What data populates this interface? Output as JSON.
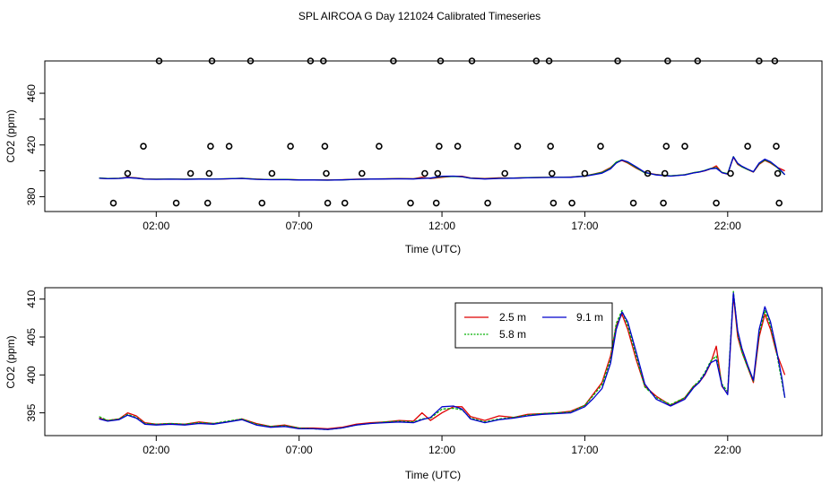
{
  "chart_data": [
    {
      "type": "scatter",
      "title": "SPL AIRCOA G  Day 121024  Calibrated Timeseries",
      "xlabel": "Time (UTC)",
      "ylabel": "CO2 (ppm)",
      "x_units": "hours UTC",
      "xlim": [
        -1.9,
        25.3
      ],
      "ylim": [
        368.5,
        485
      ],
      "x_ticks": [
        2,
        7,
        12,
        17,
        22
      ],
      "x_tick_labels": [
        "02:00",
        "07:00",
        "12:00",
        "17:00",
        "22:00"
      ],
      "y_ticks": [
        380,
        420,
        460
      ],
      "y_tick_labels": [
        "380",
        "420",
        "460"
      ],
      "y_minor_ticks": [
        400,
        440
      ],
      "grid": false,
      "legend": "none",
      "calibration_points": {
        "x": [
          0.5,
          1.0,
          1.55,
          2.1,
          2.7,
          3.2,
          3.8,
          3.85,
          3.9,
          3.95,
          4.55,
          5.3,
          5.7,
          6.05,
          6.7,
          7.4,
          7.85,
          7.9,
          7.95,
          8.0,
          8.6,
          9.2,
          9.8,
          10.3,
          10.9,
          11.4,
          11.8,
          11.85,
          11.9,
          11.95,
          12.55,
          13.05,
          13.6,
          14.2,
          14.65,
          15.3,
          15.75,
          15.8,
          15.85,
          15.9,
          16.55,
          17.0,
          17.55,
          18.15,
          18.7,
          19.2,
          19.75,
          19.8,
          19.85,
          19.9,
          20.5,
          20.95,
          21.6,
          22.1,
          22.7,
          23.1,
          23.65,
          23.7,
          23.75,
          23.8
        ],
        "y": [
          375,
          398,
          419,
          485,
          375,
          398,
          375,
          398,
          419,
          485,
          419,
          485,
          375,
          398,
          419,
          485,
          485,
          419,
          398,
          375,
          375,
          398,
          419,
          485,
          375,
          398,
          375,
          398,
          419,
          485,
          419,
          485,
          375,
          398,
          419,
          485,
          485,
          419,
          398,
          375,
          375,
          398,
          419,
          485,
          375,
          398,
          375,
          398,
          419,
          485,
          419,
          485,
          375,
          398,
          419,
          485,
          485,
          419,
          398,
          375
        ]
      },
      "series": [
        {
          "name": "2.5 m",
          "color": "#df0000"
        },
        {
          "name": "5.8 m",
          "color": "#00b000"
        },
        {
          "name": "9.1 m",
          "color": "#0000cc"
        }
      ]
    },
    {
      "type": "line",
      "xlabel": "Time (UTC)",
      "ylabel": "CO2 (ppm)",
      "x_units": "hours UTC",
      "xlim": [
        -1.9,
        25.3
      ],
      "ylim": [
        392,
        411.5
      ],
      "x_ticks": [
        2,
        7,
        12,
        17,
        22
      ],
      "x_tick_labels": [
        "02:00",
        "07:00",
        "12:00",
        "17:00",
        "22:00"
      ],
      "y_ticks": [
        395,
        400,
        405,
        410
      ],
      "y_tick_labels": [
        "395",
        "400",
        "405",
        "410"
      ],
      "grid": false,
      "legend": "top-right",
      "x": [
        0,
        0.3,
        0.7,
        1.0,
        1.3,
        1.6,
        2.0,
        2.5,
        3.0,
        3.5,
        4.0,
        4.5,
        5.0,
        5.5,
        6.0,
        6.5,
        7.0,
        7.5,
        8.0,
        8.5,
        9.0,
        9.5,
        10.0,
        10.5,
        11.0,
        11.3,
        11.6,
        12.0,
        12.4,
        12.7,
        13.0,
        13.5,
        14.0,
        14.5,
        15.0,
        15.5,
        16.0,
        16.5,
        17.0,
        17.3,
        17.6,
        17.9,
        18.1,
        18.3,
        18.5,
        18.8,
        19.1,
        19.5,
        20.0,
        20.5,
        20.8,
        21.0,
        21.2,
        21.4,
        21.6,
        21.8,
        22.0,
        22.1,
        22.2,
        22.35,
        22.5,
        22.7,
        22.9,
        23.1,
        23.3,
        23.5,
        23.7,
        23.9,
        24.0
      ],
      "series": [
        {
          "name": "2.5 m",
          "color": "#df0000",
          "values": [
            394.3,
            394.0,
            394.2,
            395.0,
            394.6,
            393.7,
            393.5,
            393.6,
            393.5,
            393.8,
            393.6,
            393.8,
            394.2,
            393.6,
            393.2,
            393.4,
            393.0,
            393.0,
            392.9,
            393.1,
            393.5,
            393.7,
            393.8,
            394.0,
            393.9,
            395.0,
            394.0,
            395.0,
            395.8,
            395.8,
            394.5,
            394.0,
            394.6,
            394.4,
            394.8,
            394.9,
            395.0,
            395.2,
            396.0,
            397.5,
            399.0,
            402.5,
            406.5,
            408.0,
            406.0,
            402.0,
            398.5,
            397.2,
            396.0,
            397.0,
            398.5,
            399.0,
            400.0,
            401.5,
            403.8,
            398.5,
            397.5,
            404.0,
            410.5,
            405.0,
            403.0,
            401.0,
            399.0,
            405.0,
            408.0,
            406.0,
            403.0,
            401.0,
            400.0
          ]
        },
        {
          "name": "5.8 m",
          "color": "#00b000",
          "values": [
            394.5,
            394.0,
            394.2,
            394.8,
            394.4,
            393.6,
            393.5,
            393.6,
            393.5,
            393.7,
            393.6,
            393.9,
            394.2,
            393.5,
            393.2,
            393.3,
            393.0,
            392.9,
            392.8,
            393.0,
            393.4,
            393.6,
            393.8,
            393.9,
            393.8,
            394.2,
            394.3,
            395.5,
            395.6,
            395.4,
            394.3,
            393.8,
            394.2,
            394.4,
            394.7,
            394.9,
            395.0,
            395.1,
            396.0,
            397.3,
            398.7,
            402.0,
            406.8,
            408.5,
            406.5,
            402.5,
            398.4,
            397.0,
            396.1,
            397.0,
            398.5,
            399.2,
            400.3,
            401.8,
            402.5,
            398.8,
            397.8,
            404.5,
            411.0,
            405.5,
            403.0,
            401.0,
            399.2,
            405.5,
            408.5,
            406.5,
            403.2,
            399.0,
            397.0
          ]
        },
        {
          "name": "9.1 m",
          "color": "#0000cc",
          "values": [
            394.2,
            393.9,
            394.1,
            394.7,
            394.3,
            393.5,
            393.4,
            393.5,
            393.4,
            393.6,
            393.5,
            393.8,
            394.1,
            393.4,
            393.1,
            393.2,
            392.9,
            392.9,
            392.8,
            393.0,
            393.4,
            393.6,
            393.7,
            393.8,
            393.7,
            394.1,
            394.4,
            395.8,
            395.9,
            395.5,
            394.2,
            393.7,
            394.1,
            394.3,
            394.6,
            394.8,
            394.9,
            395.0,
            395.8,
            396.9,
            398.2,
            401.5,
            406.0,
            408.3,
            407.0,
            403.0,
            398.8,
            396.8,
            395.9,
            396.8,
            398.3,
            399.0,
            400.1,
            401.6,
            402.0,
            398.6,
            397.4,
            404.2,
            410.8,
            405.8,
            403.5,
            401.3,
            399.3,
            406.0,
            409.0,
            407.0,
            403.5,
            399.5,
            397.0
          ]
        }
      ]
    }
  ]
}
